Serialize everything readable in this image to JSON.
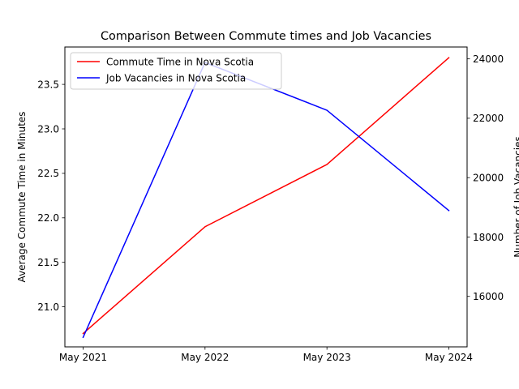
{
  "chart_data": {
    "type": "line",
    "title": "Comparison Between Commute times and Job Vacancies",
    "categories": [
      "May 2021",
      "May 2022",
      "May 2023",
      "May 2024"
    ],
    "left_axis": {
      "label": "Average Commute Time in Minutes",
      "ylim": [
        20.55,
        23.92
      ],
      "ticks": [
        "21.0",
        "21.5",
        "22.0",
        "22.5",
        "23.0",
        "23.5"
      ]
    },
    "right_axis": {
      "label": "Number of Job Vacancies",
      "ylim": [
        14300,
        24400
      ],
      "ticks": [
        "16000",
        "18000",
        "20000",
        "22000",
        "24000"
      ]
    },
    "series": [
      {
        "name": "Commute Time in Nova Scotia",
        "axis": "left",
        "color": "#ff0000",
        "values": [
          20.7,
          21.9,
          22.6,
          23.8
        ]
      },
      {
        "name": "Job Vacancies in Nova Scotia",
        "axis": "right",
        "color": "#0000ff",
        "values": [
          14620,
          23880,
          22270,
          18890
        ]
      }
    ],
    "legend": "top-left",
    "grid": false
  }
}
